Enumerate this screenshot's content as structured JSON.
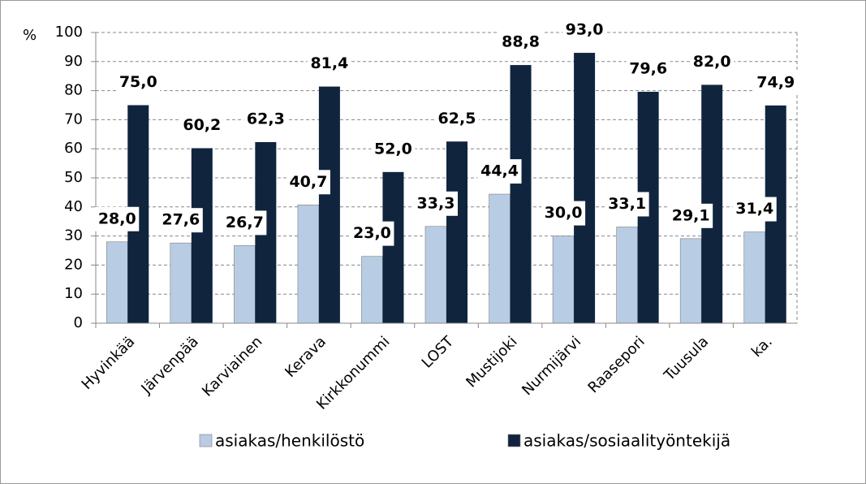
{
  "chart_data": {
    "type": "bar",
    "y_label": "%",
    "categories": [
      "Hyvinkää",
      "Järvenpää",
      "Karviainen",
      "Kerava",
      "Kirkkonummi",
      "LOST",
      "Mustijoki",
      "Nurmijärvi",
      "Raasepori",
      "Tuusula",
      "ka."
    ],
    "series": [
      {
        "name": "asiakas/henkilöstö",
        "color": "#b8cce4",
        "values": [
          28.0,
          27.6,
          26.7,
          40.7,
          23.0,
          33.3,
          44.4,
          30.0,
          33.1,
          29.1,
          31.4
        ],
        "value_labels": [
          "28,0",
          "27,6",
          "26,7",
          "40,7",
          "23,0",
          "33,3",
          "44,4",
          "30,0",
          "33,1",
          "29,1",
          "31,4"
        ]
      },
      {
        "name": "asiakas/sosiaalityöntekijä",
        "color": "#10243e",
        "values": [
          75.0,
          60.2,
          62.3,
          81.4,
          52.0,
          62.5,
          88.8,
          93.0,
          79.6,
          82.0,
          74.9
        ],
        "value_labels": [
          "75,0",
          "60,2",
          "62,3",
          "81,4",
          "52,0",
          "62,5",
          "88,8",
          "93,0",
          "79,6",
          "82,0",
          "74,9"
        ]
      }
    ],
    "ylim": [
      0,
      100
    ],
    "yticks": [
      0,
      10,
      20,
      30,
      40,
      50,
      60,
      70,
      80,
      90,
      100
    ],
    "grid": true
  }
}
